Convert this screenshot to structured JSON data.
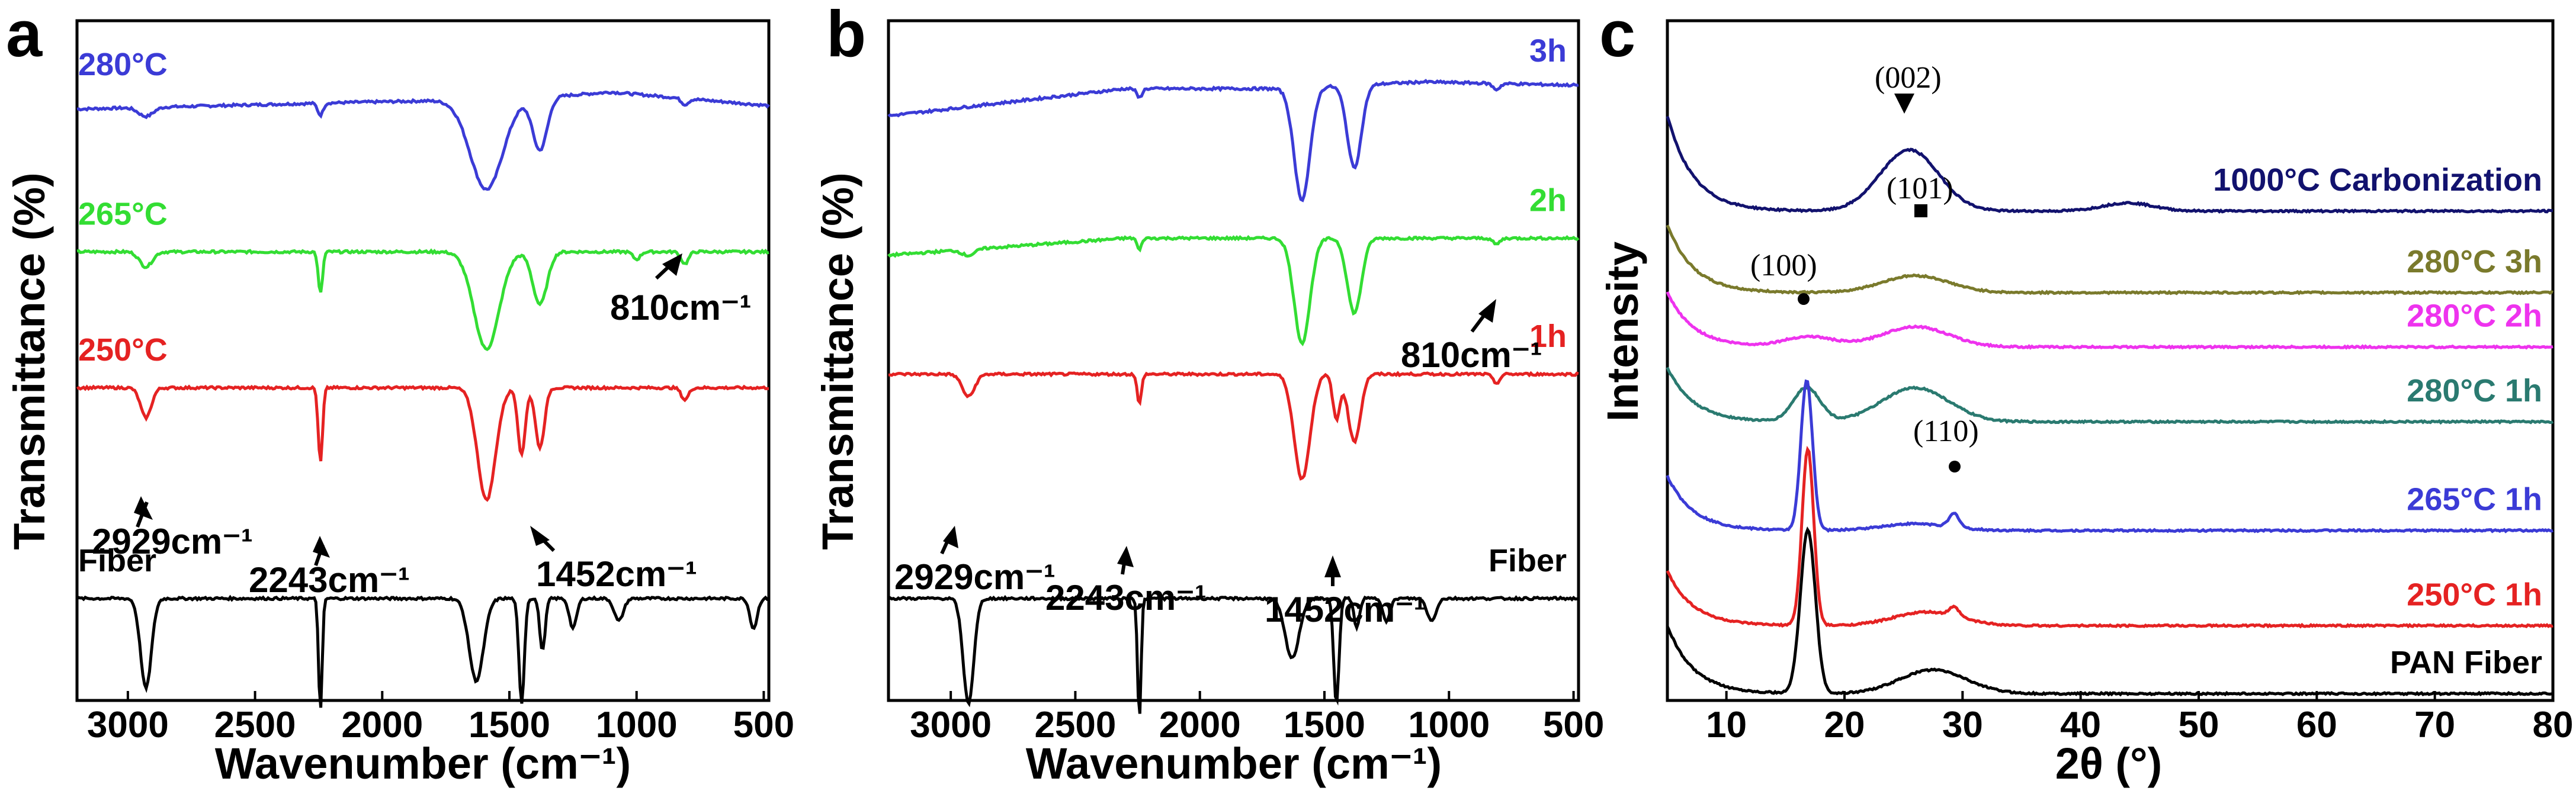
{
  "chart_data": [
    {
      "type": "line",
      "panel": "a",
      "xlabel": "Wavenumber (cm⁻¹)",
      "ylabel": "Transmittance (%)",
      "xlim": [
        3200,
        480
      ],
      "xticks": [
        "3000",
        "2500",
        "2000",
        "1500",
        "1000",
        "500"
      ],
      "xtick_values": [
        3000,
        2500,
        2000,
        1500,
        1000,
        500
      ],
      "series": [
        {
          "name": "280°C",
          "color": "#3b3bd6",
          "label_pos": "left",
          "offset": 88,
          "scale": 22,
          "bands": [
            [
              2929,
              6,
              40
            ],
            [
              2243,
              8,
              15
            ],
            [
              1590,
              60,
              90
            ],
            [
              1380,
              35,
              40
            ],
            [
              810,
              4,
              20
            ]
          ],
          "slope": [
            [
              3200,
              -10
            ],
            [
              2100,
              0
            ],
            [
              1450,
              5
            ],
            [
              1100,
              15
            ],
            [
              480,
              -5
            ]
          ]
        },
        {
          "name": "265°C",
          "color": "#33dd33",
          "label_pos": "left",
          "offset": 66,
          "scale": 22,
          "bands": [
            [
              2929,
              10,
              35
            ],
            [
              2243,
              28,
              12
            ],
            [
              1590,
              65,
              70
            ],
            [
              1380,
              35,
              40
            ],
            [
              1000,
              5,
              20
            ],
            [
              810,
              8,
              20
            ]
          ],
          "slope": [
            [
              3200,
              0
            ],
            [
              2000,
              0
            ],
            [
              480,
              0
            ]
          ]
        },
        {
          "name": "250°C",
          "color": "#e52222",
          "label_pos": "left",
          "offset": 46,
          "scale": 22,
          "bands": [
            [
              2929,
              20,
              30
            ],
            [
              2243,
              50,
              12
            ],
            [
              1590,
              75,
              50
            ],
            [
              1452,
              45,
              20
            ],
            [
              1380,
              40,
              25
            ],
            [
              810,
              8,
              20
            ]
          ],
          "slope": [
            [
              3200,
              0
            ],
            [
              480,
              0
            ]
          ]
        },
        {
          "name": "Fiber",
          "color": "#000000",
          "label_pos": "left",
          "offset": 15,
          "scale": 22,
          "bands": [
            [
              2929,
              60,
              30
            ],
            [
              2243,
              75,
              10
            ],
            [
              1630,
              55,
              40
            ],
            [
              1452,
              70,
              15
            ],
            [
              1370,
              35,
              15
            ],
            [
              1250,
              20,
              20
            ],
            [
              1070,
              15,
              25
            ],
            [
              540,
              20,
              20
            ]
          ],
          "slope": [
            [
              3200,
              0
            ],
            [
              480,
              0
            ]
          ]
        }
      ],
      "annotations": [
        "2929cm⁻¹",
        "2243cm⁻¹",
        "1452cm⁻¹",
        "810cm⁻¹"
      ]
    },
    {
      "type": "line",
      "panel": "b",
      "xlabel": "Wavenumber (cm⁻¹)",
      "ylabel": "Transmittance (%)",
      "xlim": [
        3250,
        480
      ],
      "xticks": [
        "3000",
        "2500",
        "2000",
        "1500",
        "1000",
        "500"
      ],
      "xtick_values": [
        3000,
        2500,
        2000,
        1500,
        1000,
        500
      ],
      "series": [
        {
          "name": "3h",
          "color": "#3b3bd6",
          "label_pos": "right",
          "offset": 90,
          "scale": 22,
          "bands": [
            [
              2243,
              6,
              15
            ],
            [
              1590,
              75,
              45
            ],
            [
              1380,
              55,
              40
            ],
            [
              810,
              4,
              20
            ]
          ],
          "slope": [
            [
              3250,
              -40
            ],
            [
              2300,
              0
            ],
            [
              1700,
              0
            ],
            [
              1100,
              10
            ],
            [
              480,
              5
            ]
          ]
        },
        {
          "name": "2h",
          "color": "#33dd33",
          "label_pos": "right",
          "offset": 68,
          "scale": 22,
          "bands": [
            [
              2929,
              4,
              35
            ],
            [
              2243,
              8,
              12
            ],
            [
              1590,
              70,
              45
            ],
            [
              1380,
              50,
              40
            ],
            [
              810,
              4,
              20
            ]
          ],
          "slope": [
            [
              3250,
              -25
            ],
            [
              2300,
              0
            ],
            [
              480,
              0
            ]
          ]
        },
        {
          "name": "1h",
          "color": "#e52222",
          "label_pos": "right",
          "offset": 48,
          "scale": 22,
          "bands": [
            [
              2929,
              15,
              35
            ],
            [
              2243,
              20,
              12
            ],
            [
              1590,
              70,
              45
            ],
            [
              1452,
              30,
              20
            ],
            [
              1380,
              45,
              35
            ],
            [
              810,
              6,
              20
            ]
          ],
          "slope": [
            [
              3250,
              0
            ],
            [
              480,
              0
            ]
          ]
        },
        {
          "name": "Fiber",
          "color": "#000000",
          "label_pos": "right",
          "offset": 15,
          "scale": 22,
          "bands": [
            [
              2929,
              70,
              30
            ],
            [
              2243,
              80,
              10
            ],
            [
              1630,
              40,
              40
            ],
            [
              1452,
              70,
              15
            ],
            [
              1370,
              20,
              15
            ],
            [
              1250,
              15,
              20
            ],
            [
              1070,
              15,
              25
            ]
          ],
          "slope": [
            [
              3250,
              0
            ],
            [
              480,
              0
            ]
          ]
        }
      ],
      "annotations": [
        "2929cm⁻¹",
        "2243cm⁻¹",
        "1452cm⁻¹",
        "810cm⁻¹"
      ]
    },
    {
      "type": "line",
      "panel": "c",
      "xlabel": "2θ (°)",
      "ylabel": "Intensity",
      "xlim": [
        5,
        80
      ],
      "xticks": [
        "10",
        "20",
        "30",
        "40",
        "50",
        "60",
        "70",
        "80"
      ],
      "xtick_values": [
        10,
        20,
        30,
        40,
        50,
        60,
        70,
        80
      ],
      "series": [
        {
          "name": "1000°C Carbonization",
          "color": "#12126e",
          "offset": 72,
          "scale": 1,
          "peaks": [
            [
              25.5,
              9,
              3.5
            ],
            [
              44,
              1.2,
              3
            ]
          ],
          "lowangle": 14
        },
        {
          "name": "280°C 3h",
          "color": "#7a7a2c",
          "offset": 60,
          "scale": 1,
          "peaks": [
            [
              26,
              2.5,
              4
            ]
          ],
          "lowangle": 10
        },
        {
          "name": "280°C 2h",
          "color": "#ee33ee",
          "offset": 52,
          "scale": 1,
          "peaks": [
            [
              17,
              1.5,
              3
            ],
            [
              26,
              3,
              4
            ]
          ],
          "lowangle": 8
        },
        {
          "name": "280°C 1h",
          "color": "#2a7a70",
          "offset": 41,
          "scale": 1,
          "peaks": [
            [
              16.8,
              5,
              1.6
            ],
            [
              26,
              5,
              4
            ]
          ],
          "lowangle": 8
        },
        {
          "name": "265°C 1h",
          "color": "#3b3bd6",
          "offset": 25,
          "scale": 1,
          "peaks": [
            [
              16.8,
              22,
              0.7
            ],
            [
              29.3,
              2,
              0.6
            ],
            [
              26,
              1,
              4
            ]
          ],
          "lowangle": 8
        },
        {
          "name": "250°C 1h",
          "color": "#e52222",
          "offset": 11,
          "scale": 1,
          "peaks": [
            [
              16.9,
              26,
              0.7
            ],
            [
              29.3,
              1.3,
              0.6
            ],
            [
              27,
              2,
              4
            ]
          ],
          "lowangle": 8
        },
        {
          "name": "PAN Fiber",
          "color": "#000000",
          "offset": 1,
          "scale": 1,
          "peaks": [
            [
              16.9,
              24,
              0.9
            ],
            [
              27.5,
              3.5,
              4
            ]
          ],
          "lowangle": 10
        }
      ],
      "annotations": [
        "(002)",
        "(101)",
        "(100)",
        "(110)"
      ]
    }
  ]
}
